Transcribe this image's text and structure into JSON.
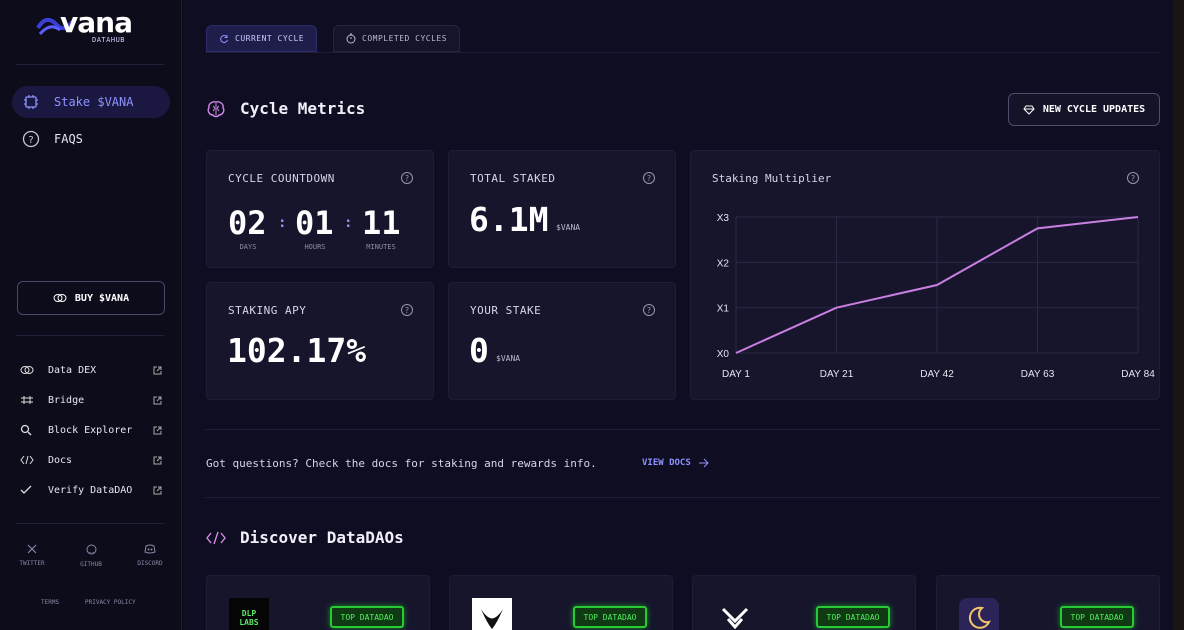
{
  "brand": {
    "name": "vana",
    "sub": "DATAHUB"
  },
  "nav": [
    {
      "label": "Stake $VANA",
      "icon": "chip-icon",
      "active": true
    },
    {
      "label": "FAQS",
      "icon": "question-icon",
      "active": false
    }
  ],
  "buy_label": "BUY $VANA",
  "links": [
    {
      "label": "Data DEX",
      "icon": "exchange-icon"
    },
    {
      "label": "Bridge",
      "icon": "bridge-icon"
    },
    {
      "label": "Block Explorer",
      "icon": "search-icon"
    },
    {
      "label": "Docs",
      "icon": "code-icon"
    },
    {
      "label": "Verify DataDAO",
      "icon": "check-icon"
    }
  ],
  "socials": [
    {
      "label": "TWITTER",
      "icon": "x-icon"
    },
    {
      "label": "GITHUB",
      "icon": "github-icon"
    },
    {
      "label": "DISCORD",
      "icon": "discord-icon"
    }
  ],
  "footer": {
    "terms": "TERMS",
    "privacy": "PRIVACY POLICY"
  },
  "tabs": [
    {
      "label": "CURRENT CYCLE",
      "active": true
    },
    {
      "label": "COMPLETED CYCLES",
      "active": false
    }
  ],
  "metrics": {
    "title": "Cycle Metrics",
    "new_updates": "NEW CYCLE UPDATES",
    "countdown": {
      "label": "CYCLE COUNTDOWN",
      "days": "02",
      "hours": "01",
      "minutes": "11",
      "days_lbl": "DAYS",
      "hours_lbl": "HOURS",
      "minutes_lbl": "MINUTES",
      "sep": ":"
    },
    "total_staked": {
      "label": "TOTAL STAKED",
      "value": "6.1M",
      "unit": "$VANA"
    },
    "apy": {
      "label": "STAKING APY",
      "value": "102.17%"
    },
    "your_stake": {
      "label": "YOUR STAKE",
      "value": "0",
      "unit": "$VANA"
    },
    "help": "?"
  },
  "chart_data": {
    "type": "line",
    "title": "Staking Multiplier",
    "x": [
      "DAY 1",
      "DAY 21",
      "DAY 42",
      "DAY 63",
      "DAY 84"
    ],
    "y_ticks": [
      "X0",
      "X1",
      "X2",
      "X3"
    ],
    "ylim": [
      0,
      3
    ],
    "series": [
      {
        "values": [
          0,
          1,
          1.5,
          2.75,
          3
        ]
      }
    ],
    "line_color": "#c97fe0"
  },
  "questions": {
    "text": "Got questions? Check the docs for staking and rewards info.",
    "link": "VIEW DOCS"
  },
  "discover": {
    "title": "Discover DataDAOs",
    "badge": "TOP DATADAO",
    "dlp_logo": "DLP LABS"
  }
}
